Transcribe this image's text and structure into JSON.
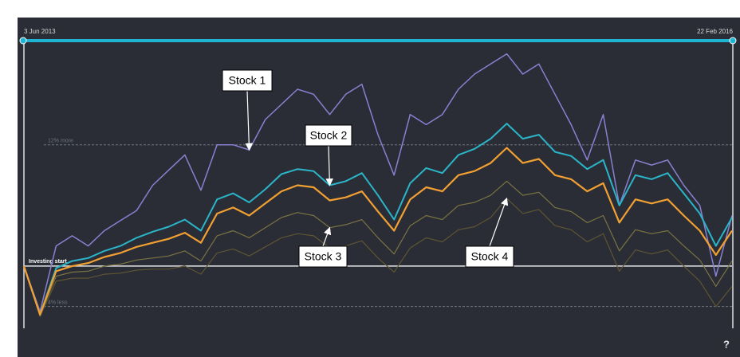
{
  "chart_data": {
    "type": "line",
    "date_range": [
      "3 Jun 2013",
      "22 Feb 2016"
    ],
    "ylim": [
      -6,
      21.6
    ],
    "reference_lines": [
      {
        "value": 12,
        "label": "12% more"
      },
      {
        "value": 0,
        "label": "Investing start"
      },
      {
        "value": -4,
        "label": "4% less"
      }
    ],
    "series": [
      {
        "name": "Stock 1",
        "color": "#8a80d2",
        "values": [
          0,
          -4.5,
          2.0,
          3.0,
          2.0,
          3.5,
          4.5,
          5.5,
          8.0,
          9.5,
          11.0,
          7.5,
          12.0,
          12.0,
          11.5,
          14.5,
          16.0,
          17.5,
          17.0,
          15.0,
          17.0,
          18.0,
          13.0,
          9.0,
          15.0,
          14.0,
          15.0,
          17.5,
          19.0,
          20.0,
          21.0,
          19.0,
          20.0,
          17.0,
          14.0,
          10.5,
          15.0,
          6.0,
          10.5,
          10.0,
          10.5,
          8.0,
          6.0,
          -1.0,
          5.0
        ]
      },
      {
        "name": "Stock 2",
        "color": "#2ab5c8",
        "values": [
          0,
          -4.8,
          -0.2,
          0.5,
          0.8,
          1.5,
          2.0,
          2.8,
          3.4,
          3.9,
          4.6,
          3.5,
          6.6,
          7.2,
          6.3,
          7.6,
          9.1,
          9.6,
          9.4,
          8.0,
          8.4,
          9.2,
          7.0,
          4.6,
          8.2,
          9.7,
          9.2,
          11.0,
          11.6,
          12.6,
          14.1,
          12.6,
          13.0,
          11.3,
          10.9,
          9.6,
          10.5,
          6.0,
          9.0,
          8.6,
          9.2,
          7.2,
          5.2,
          2.0,
          4.8
        ]
      },
      {
        "color": "#f2a032",
        "values": [
          0,
          -4.8,
          -0.5,
          0,
          0.3,
          0.9,
          1.3,
          1.9,
          2.3,
          2.7,
          3.3,
          2.3,
          5.2,
          5.8,
          5.0,
          6.2,
          7.4,
          8.0,
          7.8,
          6.5,
          6.8,
          7.4,
          5.4,
          3.5,
          6.6,
          7.8,
          7.4,
          9.0,
          9.4,
          10.2,
          11.7,
          10.2,
          10.6,
          9.0,
          8.6,
          7.4,
          8.2,
          4.3,
          6.6,
          6.2,
          6.6,
          5.0,
          3.5,
          1.1,
          3.5
        ]
      },
      {
        "name": "Stock 3",
        "color": "#7a7442",
        "values": [
          0,
          -4.9,
          -1.0,
          -0.6,
          -0.5,
          0,
          0.2,
          0.6,
          0.8,
          1.0,
          1.5,
          0.5,
          3.0,
          3.5,
          2.8,
          3.8,
          4.8,
          5.3,
          5.0,
          3.8,
          4.1,
          4.6,
          2.8,
          1.2,
          4.0,
          5.0,
          4.6,
          6.0,
          6.3,
          7.0,
          8.4,
          7.0,
          7.3,
          5.8,
          5.4,
          4.3,
          5.0,
          1.5,
          3.6,
          3.2,
          3.5,
          2.0,
          0.6,
          -2.0,
          0.5
        ]
      },
      {
        "name": "Stock 4",
        "color": "#5e5532",
        "values": [
          0,
          -5.0,
          -1.5,
          -1.2,
          -1.2,
          -0.8,
          -0.7,
          -0.4,
          -0.3,
          -0.3,
          0,
          -0.8,
          1.3,
          1.7,
          1.0,
          1.9,
          2.8,
          3.2,
          3.0,
          1.8,
          2.0,
          2.5,
          0.8,
          -0.6,
          1.8,
          2.8,
          2.4,
          3.6,
          3.9,
          4.8,
          6.7,
          5.2,
          5.6,
          4.0,
          3.6,
          2.4,
          3.2,
          -0.5,
          1.6,
          1.2,
          1.6,
          0,
          -1.5,
          -4.0,
          -2.0
        ]
      }
    ]
  },
  "help_label": "?"
}
